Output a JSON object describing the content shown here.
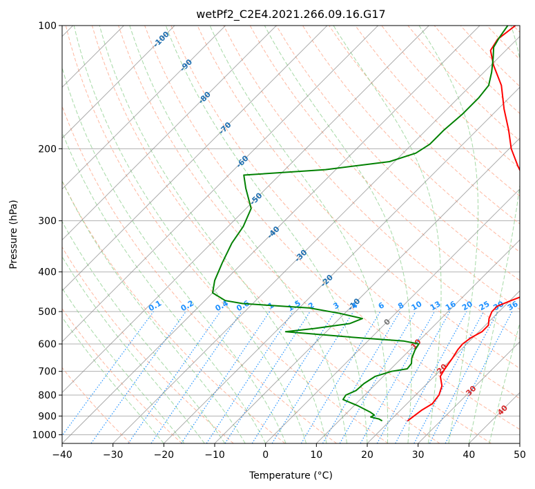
{
  "chart_data": {
    "type": "line",
    "diagram": "skew-t log-p",
    "title": "wetPf2_C2E4.2021.266.09.16.G17",
    "xlabel": "Temperature (°C)",
    "ylabel": "Pressure (hPa)",
    "xlim": [
      -40,
      50
    ],
    "ylim": [
      1050,
      100
    ],
    "y_scale": "log",
    "grid": true,
    "x_ticks": [
      -40,
      -30,
      -20,
      -10,
      0,
      10,
      20,
      30,
      40,
      50
    ],
    "x_tick_labels": [
      "−40",
      "−30",
      "−20",
      "−10",
      "0",
      "10",
      "20",
      "30",
      "40",
      "50"
    ],
    "y_ticks": [
      100,
      200,
      300,
      400,
      500,
      600,
      700,
      800,
      900,
      1000
    ],
    "y_tick_labels": [
      "100",
      "200",
      "300",
      "400",
      "500",
      "600",
      "700",
      "800",
      "900",
      "1000"
    ],
    "series": [
      {
        "color": "#ff0000",
        "points": [
          {
            "p": 925,
            "t": 23.5
          },
          {
            "p": 900,
            "t": 23.8
          },
          {
            "p": 870,
            "t": 24.2
          },
          {
            "p": 840,
            "t": 25.0
          },
          {
            "p": 800,
            "t": 24.6
          },
          {
            "p": 760,
            "t": 23.4
          },
          {
            "p": 720,
            "t": 21.2
          },
          {
            "p": 690,
            "t": 20.6
          },
          {
            "p": 650,
            "t": 20.0
          },
          {
            "p": 620,
            "t": 19.4
          },
          {
            "p": 600,
            "t": 19.2
          },
          {
            "p": 580,
            "t": 19.6
          },
          {
            "p": 560,
            "t": 20.6
          },
          {
            "p": 540,
            "t": 20.6
          },
          {
            "p": 520,
            "t": 19.4
          },
          {
            "p": 500,
            "t": 18.6
          },
          {
            "p": 485,
            "t": 18.6
          },
          {
            "p": 470,
            "t": 20.2
          },
          {
            "p": 455,
            "t": 22.0
          },
          {
            "p": 440,
            "t": 22.5
          },
          {
            "p": 420,
            "t": 21.3
          },
          {
            "p": 400,
            "t": 19.8
          },
          {
            "p": 380,
            "t": 18.4
          },
          {
            "p": 350,
            "t": 15.6
          },
          {
            "p": 320,
            "t": 12.0
          },
          {
            "p": 300,
            "t": 9.0
          },
          {
            "p": 280,
            "t": 6.2
          },
          {
            "p": 260,
            "t": 3.2
          },
          {
            "p": 240,
            "t": -0.5
          },
          {
            "p": 220,
            "t": -5.0
          },
          {
            "p": 200,
            "t": -9.6
          },
          {
            "p": 180,
            "t": -13.8
          },
          {
            "p": 160,
            "t": -18.8
          },
          {
            "p": 140,
            "t": -24.0
          },
          {
            "p": 125,
            "t": -29.5
          },
          {
            "p": 115,
            "t": -33.0
          },
          {
            "p": 108,
            "t": -33.8
          },
          {
            "p": 100,
            "t": -33.0
          }
        ]
      },
      {
        "color": "#008000",
        "points": [
          {
            "p": 925,
            "t": 18.5
          },
          {
            "p": 915,
            "t": 17.5
          },
          {
            "p": 905,
            "t": 15.5
          },
          {
            "p": 895,
            "t": 15.8
          },
          {
            "p": 880,
            "t": 14.4
          },
          {
            "p": 850,
            "t": 10.8
          },
          {
            "p": 820,
            "t": 6.6
          },
          {
            "p": 800,
            "t": 6.3
          },
          {
            "p": 780,
            "t": 7.4
          },
          {
            "p": 750,
            "t": 7.6
          },
          {
            "p": 720,
            "t": 8.4
          },
          {
            "p": 700,
            "t": 10.6
          },
          {
            "p": 690,
            "t": 13.2
          },
          {
            "p": 670,
            "t": 13.0
          },
          {
            "p": 650,
            "t": 12.0
          },
          {
            "p": 620,
            "t": 11.0
          },
          {
            "p": 600,
            "t": 10.6
          },
          {
            "p": 590,
            "t": 7.0
          },
          {
            "p": 580,
            "t": -2.0
          },
          {
            "p": 570,
            "t": -10.0
          },
          {
            "p": 560,
            "t": -18.0
          },
          {
            "p": 550,
            "t": -13.0
          },
          {
            "p": 535,
            "t": -7.0
          },
          {
            "p": 520,
            "t": -5.5
          },
          {
            "p": 505,
            "t": -11.0
          },
          {
            "p": 490,
            "t": -18.0
          },
          {
            "p": 478,
            "t": -32.0
          },
          {
            "p": 470,
            "t": -36.0
          },
          {
            "p": 450,
            "t": -40.0
          },
          {
            "p": 420,
            "t": -42.0
          },
          {
            "p": 380,
            "t": -44.0
          },
          {
            "p": 340,
            "t": -46.0
          },
          {
            "p": 310,
            "t": -47.0
          },
          {
            "p": 280,
            "t": -49.0
          },
          {
            "p": 250,
            "t": -54.0
          },
          {
            "p": 232,
            "t": -57.0
          },
          {
            "p": 225,
            "t": -42.0
          },
          {
            "p": 215,
            "t": -31.0
          },
          {
            "p": 205,
            "t": -27.5
          },
          {
            "p": 195,
            "t": -26.5
          },
          {
            "p": 180,
            "t": -26.5
          },
          {
            "p": 165,
            "t": -26.0
          },
          {
            "p": 150,
            "t": -26.0
          },
          {
            "p": 140,
            "t": -26.5
          },
          {
            "p": 130,
            "t": -28.5
          },
          {
            "p": 120,
            "t": -31.0
          },
          {
            "p": 113,
            "t": -33.0
          },
          {
            "p": 107,
            "t": -33.8
          },
          {
            "p": 100,
            "t": -34.5
          }
        ]
      }
    ],
    "isotherm_labels": [
      "-100",
      "-90",
      "-80",
      "-70",
      "-60",
      "-50",
      "-40",
      "-30",
      "-20",
      "-10",
      "0",
      "10",
      "20",
      "30",
      "40"
    ],
    "isotherm_label_values": [
      -100,
      -90,
      -80,
      -70,
      -60,
      -50,
      -40,
      -30,
      -20,
      -10,
      0,
      10,
      20,
      30,
      40
    ],
    "mixing_ratio_labels": [
      "0.1",
      "0.2",
      "0.4",
      "0.6",
      "1",
      "1.5",
      "2",
      "3",
      "4",
      "6",
      "8",
      "10",
      "13",
      "16",
      "20",
      "25",
      "30",
      "36"
    ],
    "mixing_ratio_values": [
      0.1,
      0.2,
      0.4,
      0.6,
      1,
      1.5,
      2,
      3,
      4,
      6,
      8,
      10,
      13,
      16,
      20,
      25,
      30,
      36
    ],
    "colors": {
      "temperature": "#ff0000",
      "dewpoint": "#008000",
      "isotherm": "#888888",
      "grid": "#b0b0b0",
      "dry_adiabat": "#ff9f7f",
      "moist_adiabat": "#8fcf8f",
      "mixing_ratio": "#1e90ff",
      "cold_isotherm_label": "#1f6fb0",
      "warm_isotherm_label": "#d62728",
      "zero_label": "#777777"
    }
  }
}
